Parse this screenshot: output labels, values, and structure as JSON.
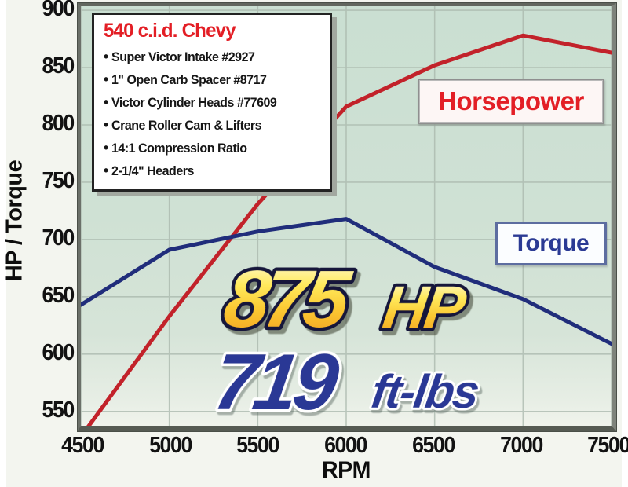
{
  "figure": {
    "y_axis_label": "HP / Torque",
    "x_axis_label": "RPM"
  },
  "info_box": {
    "title": "540 c.i.d. Chevy",
    "items": [
      "Super Victor Intake #2927",
      "1\" Open Carb Spacer #8717",
      "Victor Cylinder Heads #77609",
      "Crane Roller Cam & Lifters",
      "14:1 Compression Ratio",
      "2-1/4\" Headers"
    ]
  },
  "series_labels": {
    "horsepower": "Horsepower",
    "torque": "Torque"
  },
  "callouts": {
    "hp_value": "875",
    "hp_unit": "HP",
    "tq_value": "719",
    "tq_unit": "ft-lbs"
  },
  "colors": {
    "horsepower_line": "#c2222a",
    "torque_line": "#202d7b",
    "hp_label_text": "#e31f26",
    "tq_label_text": "#2b3a94",
    "info_title": "#e31e25",
    "plot_background": "#cfe1d4",
    "gridline": "#a9b7ac",
    "gold_top": "#fffdf0",
    "gold_bottom": "#f19a1e"
  },
  "chart_data": {
    "type": "line",
    "title": "",
    "xlabel": "RPM",
    "ylabel": "HP / Torque",
    "x": [
      4500,
      5000,
      5500,
      6000,
      6500,
      7000,
      7500
    ],
    "xticks": [
      4500,
      5000,
      5500,
      6000,
      6500,
      7000,
      7500
    ],
    "yticks": [
      550,
      600,
      650,
      700,
      750,
      800,
      850,
      900
    ],
    "xlim": [
      4500,
      7500
    ],
    "ylim_drawn": [
      537,
      903
    ],
    "grid": true,
    "legend_position": "boxed labels on plot",
    "series": [
      {
        "name": "Horsepower",
        "color": "#c2222a",
        "values": [
          528,
          633,
          731,
          816,
          852,
          878,
          863
        ],
        "note": "value at 4500 rpm is clipped below the bottom axis edge; advertised peak 875 HP"
      },
      {
        "name": "Torque",
        "color": "#202d7b",
        "values": [
          643,
          691,
          707,
          718,
          676,
          648,
          609
        ],
        "note": "advertised peak 719 ft-lbs at 6000 rpm"
      }
    ]
  }
}
